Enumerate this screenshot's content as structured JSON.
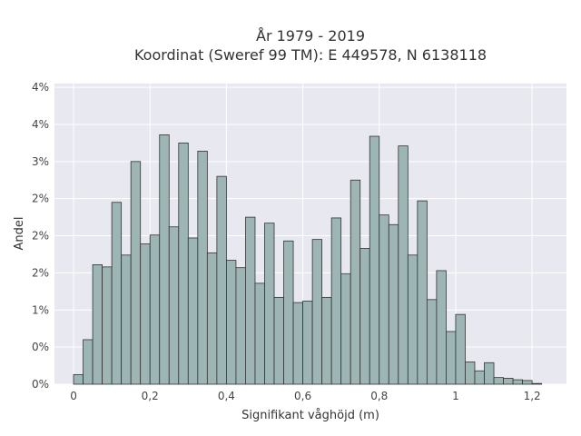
{
  "chart_data": {
    "type": "bar",
    "title": "År 1979 - 2019",
    "subtitle": "Koordinat (Sweref 99 TM): E 449578, N 6138118",
    "xlabel": "Signifikant våghöjd (m)",
    "ylabel": "Andel",
    "x_ticks": [
      {
        "value": 0,
        "label": "0"
      },
      {
        "value": 0.2,
        "label": "0,2"
      },
      {
        "value": 0.4,
        "label": "0,4"
      },
      {
        "value": 0.6,
        "label": "0,6"
      },
      {
        "value": 0.8,
        "label": "0,8"
      },
      {
        "value": 1.0,
        "label": "1"
      },
      {
        "value": 1.2,
        "label": "1,2"
      }
    ],
    "y_ticks": [
      {
        "value": 0,
        "label": "0%"
      },
      {
        "value": 0.5,
        "label": "0%"
      },
      {
        "value": 1.0,
        "label": "1%"
      },
      {
        "value": 1.5,
        "label": "2%"
      },
      {
        "value": 2.0,
        "label": "2%"
      },
      {
        "value": 2.5,
        "label": "2%"
      },
      {
        "value": 3.0,
        "label": "3%"
      },
      {
        "value": 3.5,
        "label": "4%"
      },
      {
        "value": 4.0,
        "label": "4%"
      }
    ],
    "xlim": [
      -0.05,
      1.29
    ],
    "ylim": [
      0,
      4.05
    ],
    "bin_width": 0.025,
    "bin_start": 0.0125,
    "values": [
      0.13,
      0.6,
      1.61,
      1.58,
      2.45,
      1.74,
      3.0,
      1.89,
      2.01,
      3.36,
      2.12,
      3.25,
      1.97,
      3.14,
      1.77,
      2.8,
      1.67,
      1.57,
      2.25,
      1.36,
      2.17,
      1.17,
      1.93,
      1.1,
      1.12,
      1.95,
      1.17,
      2.24,
      1.49,
      2.75,
      1.83,
      3.34,
      2.28,
      2.15,
      3.21,
      1.74,
      2.47,
      1.14,
      1.53,
      0.71,
      0.94,
      0.3,
      0.18,
      0.29,
      0.09,
      0.08,
      0.06,
      0.05,
      0.01
    ],
    "bar_color": "#9db5b5",
    "bar_edge_color": "#333333",
    "background_color": "#e8e8f0",
    "grid": true
  }
}
